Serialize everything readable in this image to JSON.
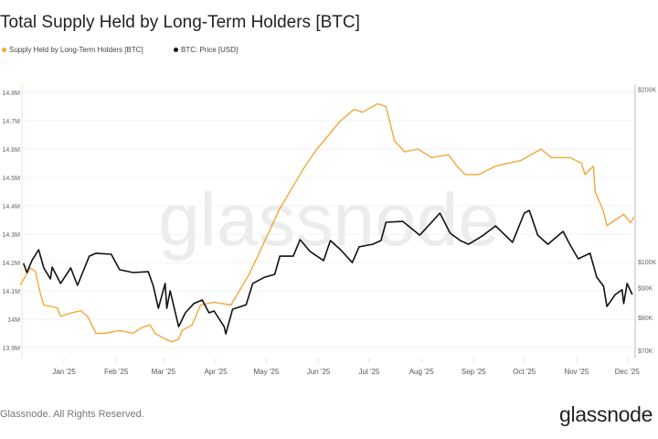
{
  "title": "Total Supply Held by Long-Term Holders [BTC]",
  "footer": "Glassnode. All Rights Reserved.",
  "logo_text": "glassnode",
  "watermark": "glassnode",
  "chart_data": {
    "type": "line",
    "title": "Total Supply Held by Long-Term Holders [BTC]",
    "legend": [
      "Supply Held by Long-Term Holders [BTC]",
      "BTC: Price [USD]"
    ],
    "legend_placement": "top-left",
    "grid": true,
    "x_ticks": [
      "Jan '25",
      "Feb '25",
      "Mar '25",
      "Apr '25",
      "May '25",
      "Jun '25",
      "Jul '25",
      "Aug '25",
      "Sep '25",
      "Oct '25",
      "Nov '25",
      "Dec '25"
    ],
    "x_tick_dates": [
      "2025-01-01",
      "2025-02-01",
      "2025-03-01",
      "2025-04-01",
      "2025-05-01",
      "2025-06-01",
      "2025-07-01",
      "2025-08-01",
      "2025-09-01",
      "2025-10-01",
      "2025-11-01",
      "2025-12-01"
    ],
    "y_left": {
      "ticks": [
        14.8,
        14.7,
        14.6,
        14.5,
        14.4,
        14.3,
        14.2,
        14.1,
        14.0,
        13.9
      ],
      "labels": [
        "14.8M",
        "14.7M",
        "14.6M",
        "14.5M",
        "14.4M",
        "14.3M",
        "14.2M",
        "14.1M",
        "14M",
        "13.9M"
      ],
      "ylim": [
        13.9,
        14.8
      ],
      "unit": "M BTC"
    },
    "y_right": {
      "scale": "log",
      "ticks": [
        200000,
        100000,
        90000,
        80000,
        70000
      ],
      "labels": [
        "$200K",
        "$100K",
        "$90K",
        "$80K",
        "$70K"
      ]
    },
    "series": [
      {
        "name": "Supply Held by Long-Term Holders [BTC]",
        "axis": "left",
        "color": "#f2a83a",
        "points": [
          [
            "2024-12-06",
            14.12
          ],
          [
            "2024-12-12",
            14.18
          ],
          [
            "2024-12-15",
            14.17
          ],
          [
            "2024-12-18",
            14.09
          ],
          [
            "2024-12-20",
            14.05
          ],
          [
            "2024-12-28",
            14.04
          ],
          [
            "2024-12-30",
            14.01
          ],
          [
            "2025-01-04",
            14.02
          ],
          [
            "2025-01-11",
            14.03
          ],
          [
            "2025-01-15",
            14.01
          ],
          [
            "2025-01-20",
            13.95
          ],
          [
            "2025-01-25",
            13.95
          ],
          [
            "2025-02-03",
            13.96
          ],
          [
            "2025-02-11",
            13.95
          ],
          [
            "2025-02-16",
            13.97
          ],
          [
            "2025-02-21",
            13.98
          ],
          [
            "2025-02-24",
            13.95
          ],
          [
            "2025-03-02",
            13.93
          ],
          [
            "2025-03-06",
            13.92
          ],
          [
            "2025-03-10",
            13.93
          ],
          [
            "2025-03-12",
            13.96
          ],
          [
            "2025-03-18",
            13.98
          ],
          [
            "2025-03-23",
            14.05
          ],
          [
            "2025-03-31",
            14.06
          ],
          [
            "2025-04-10",
            14.05
          ],
          [
            "2025-04-21",
            14.16
          ],
          [
            "2025-05-02",
            14.3
          ],
          [
            "2025-05-09",
            14.39
          ],
          [
            "2025-05-17",
            14.47
          ],
          [
            "2025-05-24",
            14.54
          ],
          [
            "2025-05-31",
            14.6
          ],
          [
            "2025-06-07",
            14.65
          ],
          [
            "2025-06-14",
            14.7
          ],
          [
            "2025-06-22",
            14.74
          ],
          [
            "2025-06-27",
            14.73
          ],
          [
            "2025-07-06",
            14.76
          ],
          [
            "2025-07-11",
            14.75
          ],
          [
            "2025-07-16",
            14.63
          ],
          [
            "2025-07-22",
            14.59
          ],
          [
            "2025-07-30",
            14.6
          ],
          [
            "2025-08-07",
            14.57
          ],
          [
            "2025-08-17",
            14.58
          ],
          [
            "2025-08-22",
            14.54
          ],
          [
            "2025-08-27",
            14.51
          ],
          [
            "2025-09-04",
            14.51
          ],
          [
            "2025-09-14",
            14.54
          ],
          [
            "2025-09-29",
            14.56
          ],
          [
            "2025-10-11",
            14.6
          ],
          [
            "2025-10-17",
            14.57
          ],
          [
            "2025-10-28",
            14.57
          ],
          [
            "2025-11-04",
            14.55
          ],
          [
            "2025-11-06",
            14.51
          ],
          [
            "2025-11-11",
            14.54
          ],
          [
            "2025-11-12",
            14.45
          ],
          [
            "2025-11-17",
            14.38
          ],
          [
            "2025-11-19",
            14.33
          ],
          [
            "2025-11-24",
            14.35
          ],
          [
            "2025-11-29",
            14.37
          ],
          [
            "2025-12-03",
            14.34
          ],
          [
            "2025-12-05",
            14.36
          ]
        ]
      },
      {
        "name": "BTC: Price [USD]",
        "axis": "right",
        "color": "#111111",
        "points": [
          [
            "2024-12-08",
            99300
          ],
          [
            "2024-12-10",
            95700
          ],
          [
            "2024-12-13",
            100400
          ],
          [
            "2024-12-17",
            104900
          ],
          [
            "2024-12-20",
            97500
          ],
          [
            "2024-12-24",
            93300
          ],
          [
            "2024-12-25",
            97800
          ],
          [
            "2024-12-30",
            91600
          ],
          [
            "2025-01-05",
            97500
          ],
          [
            "2025-01-09",
            90900
          ],
          [
            "2025-01-16",
            102200
          ],
          [
            "2025-01-20",
            103400
          ],
          [
            "2025-01-29",
            103000
          ],
          [
            "2025-02-03",
            96800
          ],
          [
            "2025-02-11",
            95700
          ],
          [
            "2025-02-20",
            96000
          ],
          [
            "2025-02-23",
            90600
          ],
          [
            "2025-02-26",
            82900
          ],
          [
            "2025-03-02",
            91600
          ],
          [
            "2025-03-03",
            82900
          ],
          [
            "2025-03-05",
            88900
          ],
          [
            "2025-03-10",
            77000
          ],
          [
            "2025-03-14",
            81400
          ],
          [
            "2025-03-19",
            84500
          ],
          [
            "2025-03-24",
            85700
          ],
          [
            "2025-03-28",
            81400
          ],
          [
            "2025-03-31",
            82000
          ],
          [
            "2025-04-06",
            77000
          ],
          [
            "2025-04-07",
            74800
          ],
          [
            "2025-04-11",
            82600
          ],
          [
            "2025-04-19",
            84100
          ],
          [
            "2025-04-23",
            91600
          ],
          [
            "2025-04-30",
            93900
          ],
          [
            "2025-05-06",
            95000
          ],
          [
            "2025-05-09",
            102200
          ],
          [
            "2025-05-17",
            102200
          ],
          [
            "2025-05-21",
            109200
          ],
          [
            "2025-05-27",
            104100
          ],
          [
            "2025-06-04",
            100400
          ],
          [
            "2025-06-08",
            108800
          ],
          [
            "2025-06-14",
            104900
          ],
          [
            "2025-06-21",
            99600
          ],
          [
            "2025-06-25",
            106100
          ],
          [
            "2025-07-03",
            107200
          ],
          [
            "2025-07-08",
            108800
          ],
          [
            "2025-07-11",
            117100
          ],
          [
            "2025-07-21",
            117500
          ],
          [
            "2025-07-31",
            111200
          ],
          [
            "2025-08-06",
            116200
          ],
          [
            "2025-08-12",
            121500
          ],
          [
            "2025-08-18",
            112100
          ],
          [
            "2025-08-24",
            108800
          ],
          [
            "2025-08-29",
            107200
          ],
          [
            "2025-09-06",
            110800
          ],
          [
            "2025-09-14",
            115400
          ],
          [
            "2025-09-24",
            108000
          ],
          [
            "2025-10-01",
            121500
          ],
          [
            "2025-10-04",
            122800
          ],
          [
            "2025-10-09",
            111200
          ],
          [
            "2025-10-15",
            107200
          ],
          [
            "2025-10-24",
            112900
          ],
          [
            "2025-10-28",
            107200
          ],
          [
            "2025-11-02",
            101100
          ],
          [
            "2025-11-09",
            103400
          ],
          [
            "2025-11-13",
            93900
          ],
          [
            "2025-11-17",
            90600
          ],
          [
            "2025-11-19",
            83500
          ],
          [
            "2025-11-24",
            87600
          ],
          [
            "2025-11-28",
            89300
          ],
          [
            "2025-11-29",
            84500
          ],
          [
            "2025-12-01",
            91600
          ],
          [
            "2025-12-04",
            87600
          ]
        ]
      }
    ]
  }
}
